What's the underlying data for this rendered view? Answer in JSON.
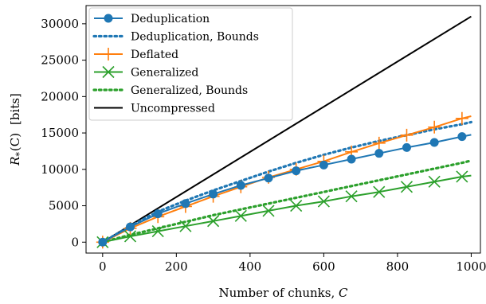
{
  "chart_data": {
    "type": "line",
    "xlabel": "Number of chunks, C",
    "ylabel_main": "R",
    "ylabel_sub": "*",
    "ylabel_rest": "(C)",
    "ylabel_unit": "[bits]",
    "xlim": [
      -45,
      1025
    ],
    "ylim": [
      -1500,
      32500
    ],
    "xticks": [
      0,
      200,
      400,
      600,
      800,
      1000
    ],
    "yticks": [
      0,
      5000,
      10000,
      15000,
      20000,
      25000,
      30000
    ],
    "xtick_labels": [
      "0",
      "200",
      "400",
      "600",
      "800",
      "1000"
    ],
    "ytick_labels": [
      "0",
      "5000",
      "10000",
      "15000",
      "20000",
      "25000",
      "30000"
    ],
    "grid": false,
    "legend_position": "upper-left",
    "series": [
      {
        "name": "Deduplication",
        "color": "#1f77b4",
        "style": "solid",
        "marker": "circle",
        "x": [
          0,
          75,
          150,
          225,
          300,
          375,
          450,
          525,
          600,
          675,
          750,
          825,
          900,
          975,
          1000
        ],
        "y": [
          0,
          2100,
          3900,
          5300,
          6600,
          7800,
          8800,
          9800,
          10600,
          11400,
          12200,
          13000,
          13700,
          14500,
          14750
        ],
        "marker_indices": [
          0,
          1,
          2,
          3,
          4,
          5,
          6,
          7,
          8,
          9,
          10,
          11,
          12,
          13
        ]
      },
      {
        "name": "Deduplication, Bounds",
        "color": "#1f77b4",
        "style": "dotted",
        "marker": "none",
        "x": [
          0,
          75,
          150,
          225,
          300,
          375,
          450,
          525,
          600,
          675,
          750,
          825,
          900,
          975,
          1000
        ],
        "y": [
          0,
          2200,
          4200,
          5700,
          7100,
          8400,
          9700,
          10900,
          12000,
          13000,
          13900,
          14700,
          15500,
          16200,
          16500
        ]
      },
      {
        "name": "Deflated",
        "color": "#ff7f0e",
        "style": "solid",
        "marker": "plus",
        "x": [
          0,
          75,
          150,
          225,
          300,
          375,
          450,
          525,
          600,
          675,
          750,
          825,
          900,
          975,
          1000
        ],
        "y": [
          0,
          1900,
          3500,
          4900,
          6300,
          7600,
          8900,
          10000,
          11100,
          12400,
          13600,
          14700,
          15800,
          17000,
          17300
        ],
        "marker_indices": [
          0,
          1,
          2,
          3,
          4,
          5,
          6,
          7,
          8,
          9,
          10,
          11,
          12,
          13
        ]
      },
      {
        "name": "Generalized",
        "color": "#2ca02c",
        "style": "solid",
        "marker": "x",
        "x": [
          0,
          75,
          150,
          225,
          300,
          375,
          450,
          525,
          600,
          675,
          750,
          825,
          900,
          975,
          1000
        ],
        "y": [
          0,
          800,
          1500,
          2200,
          2900,
          3600,
          4300,
          5000,
          5600,
          6300,
          6900,
          7600,
          8300,
          9000,
          9150
        ],
        "marker_indices": [
          0,
          1,
          2,
          3,
          4,
          5,
          6,
          7,
          8,
          9,
          10,
          11,
          12,
          13
        ]
      },
      {
        "name": "Generalized, Bounds",
        "color": "#2ca02c",
        "style": "dotted",
        "marker": "none",
        "x": [
          0,
          75,
          150,
          225,
          300,
          375,
          450,
          525,
          600,
          675,
          750,
          825,
          900,
          975,
          1000
        ],
        "y": [
          0,
          1000,
          1900,
          2800,
          3700,
          4500,
          5300,
          6100,
          6900,
          7700,
          8500,
          9300,
          10100,
          10900,
          11200
        ]
      },
      {
        "name": "Uncompressed",
        "color": "#000000",
        "style": "solid",
        "marker": "none",
        "x": [
          0,
          1000
        ],
        "y": [
          0,
          31000
        ]
      }
    ]
  }
}
